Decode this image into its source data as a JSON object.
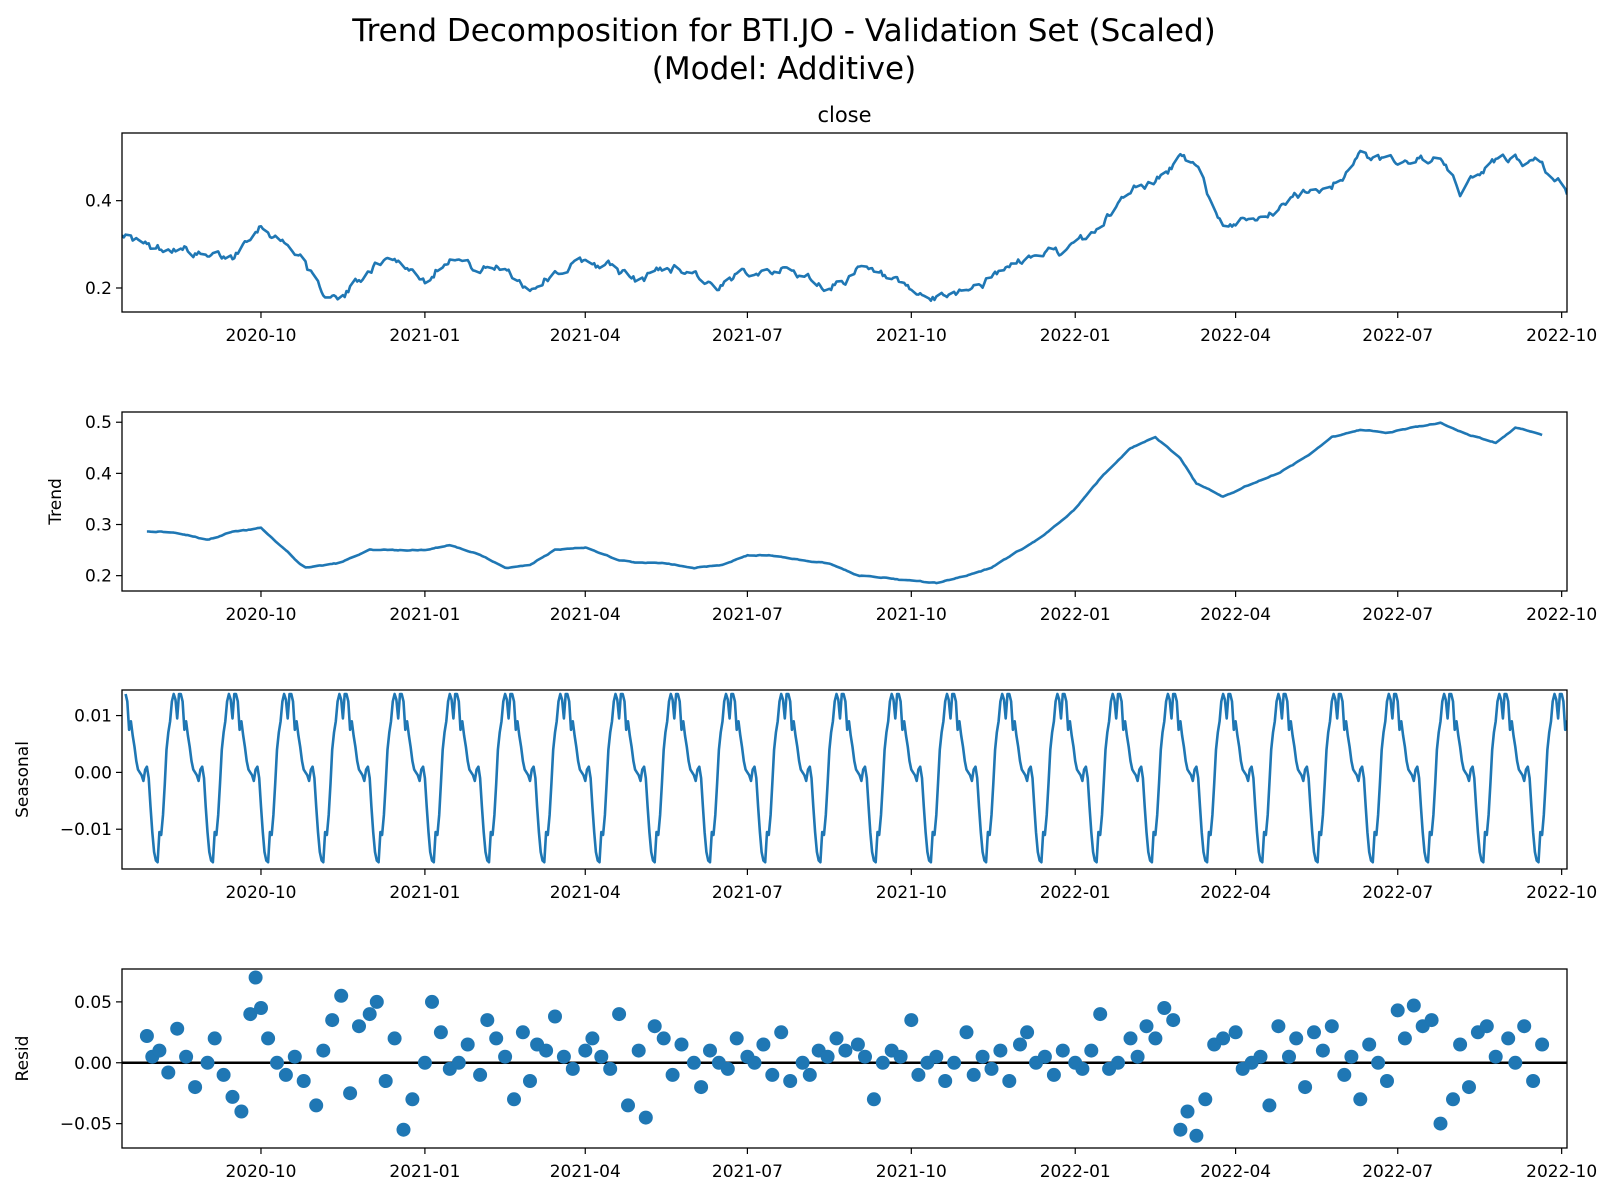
{
  "figure": {
    "title_line1": "Trend Decomposition for BTI.JO - Validation Set (Scaled)",
    "title_line2": "(Model: Additive)"
  },
  "colors": {
    "series": "#1f77b4",
    "zero_line": "#000000",
    "axes": "#000000"
  },
  "chart_data": [
    {
      "type": "line",
      "title": "close",
      "ylabel": "",
      "ylim": [
        0.145,
        0.555
      ],
      "yticks": [
        0.2,
        0.4
      ],
      "ytick_labels": [
        "0.2",
        "0.4"
      ],
      "xlim": [
        "2020-07-15",
        "2022-10-04"
      ],
      "xticks": [
        "2020-10-01",
        "2021-01-01",
        "2021-04-01",
        "2021-07-01",
        "2021-10-01",
        "2022-01-01",
        "2022-04-01",
        "2022-07-01",
        "2022-10-01"
      ],
      "xtick_labels": [
        "2020-10",
        "2021-01",
        "2021-04",
        "2021-07",
        "2021-10",
        "2022-01",
        "2022-04",
        "2022-07",
        "2022-10"
      ],
      "x": [
        "2020-07-15",
        "2020-08-01",
        "2020-08-15",
        "2020-09-01",
        "2020-09-15",
        "2020-09-25",
        "2020-10-01",
        "2020-10-15",
        "2020-10-25",
        "2020-11-01",
        "2020-11-15",
        "2020-12-01",
        "2020-12-15",
        "2021-01-01",
        "2021-01-15",
        "2021-02-01",
        "2021-02-15",
        "2021-03-01",
        "2021-03-15",
        "2021-04-01",
        "2021-04-15",
        "2021-05-01",
        "2021-05-15",
        "2021-06-01",
        "2021-06-15",
        "2021-07-01",
        "2021-07-15",
        "2021-08-01",
        "2021-08-15",
        "2021-09-01",
        "2021-09-15",
        "2021-10-01",
        "2021-10-15",
        "2021-11-01",
        "2021-11-15",
        "2021-12-01",
        "2021-12-15",
        "2022-01-01",
        "2022-01-15",
        "2022-02-01",
        "2022-02-15",
        "2022-03-01",
        "2022-03-10",
        "2022-03-25",
        "2022-04-10",
        "2022-04-25",
        "2022-05-10",
        "2022-05-25",
        "2022-06-10",
        "2022-06-25",
        "2022-07-10",
        "2022-07-25",
        "2022-08-05",
        "2022-08-20",
        "2022-09-05",
        "2022-09-20",
        "2022-10-04"
      ],
      "values": [
        0.33,
        0.285,
        0.3,
        0.265,
        0.27,
        0.33,
        0.35,
        0.3,
        0.27,
        0.2,
        0.17,
        0.25,
        0.27,
        0.22,
        0.28,
        0.24,
        0.25,
        0.2,
        0.24,
        0.26,
        0.25,
        0.21,
        0.25,
        0.24,
        0.19,
        0.24,
        0.25,
        0.23,
        0.2,
        0.24,
        0.22,
        0.18,
        0.17,
        0.2,
        0.22,
        0.26,
        0.28,
        0.29,
        0.34,
        0.43,
        0.44,
        0.5,
        0.47,
        0.34,
        0.37,
        0.38,
        0.42,
        0.44,
        0.5,
        0.49,
        0.5,
        0.49,
        0.42,
        0.48,
        0.5,
        0.48,
        0.42
      ]
    },
    {
      "type": "line",
      "title": "",
      "ylabel": "Trend",
      "ylim": [
        0.17,
        0.52
      ],
      "yticks": [
        0.2,
        0.3,
        0.4,
        0.5
      ],
      "ytick_labels": [
        "0.2",
        "0.3",
        "0.4",
        "0.5"
      ],
      "xlim": [
        "2020-07-15",
        "2022-10-04"
      ],
      "xticks": [
        "2020-10-01",
        "2021-01-01",
        "2021-04-01",
        "2021-07-01",
        "2021-10-01",
        "2022-01-01",
        "2022-04-01",
        "2022-07-01",
        "2022-10-01"
      ],
      "xtick_labels": [
        "2020-10",
        "2021-01",
        "2021-04",
        "2021-07",
        "2021-10",
        "2022-01",
        "2022-04",
        "2022-07",
        "2022-10"
      ],
      "x": [
        "2020-07-29",
        "2020-08-15",
        "2020-09-01",
        "2020-09-15",
        "2020-10-01",
        "2020-10-15",
        "2020-10-25",
        "2020-11-15",
        "2020-12-01",
        "2021-01-01",
        "2021-01-15",
        "2021-02-01",
        "2021-02-15",
        "2021-03-01",
        "2021-03-15",
        "2021-04-01",
        "2021-04-20",
        "2021-05-01",
        "2021-05-15",
        "2021-06-01",
        "2021-06-15",
        "2021-07-01",
        "2021-07-15",
        "2021-08-01",
        "2021-08-15",
        "2021-09-01",
        "2021-09-15",
        "2021-10-01",
        "2021-10-15",
        "2021-11-01",
        "2021-11-15",
        "2021-12-01",
        "2021-12-15",
        "2022-01-01",
        "2022-01-15",
        "2022-02-01",
        "2022-02-15",
        "2022-03-01",
        "2022-03-10",
        "2022-03-25",
        "2022-04-10",
        "2022-04-25",
        "2022-05-10",
        "2022-05-25",
        "2022-06-10",
        "2022-06-25",
        "2022-07-10",
        "2022-07-25",
        "2022-08-10",
        "2022-08-25",
        "2022-09-05",
        "2022-09-20"
      ],
      "values": [
        0.287,
        0.285,
        0.27,
        0.285,
        0.293,
        0.25,
        0.215,
        0.225,
        0.25,
        0.25,
        0.26,
        0.24,
        0.215,
        0.22,
        0.25,
        0.255,
        0.23,
        0.225,
        0.225,
        0.215,
        0.22,
        0.24,
        0.24,
        0.23,
        0.225,
        0.2,
        0.195,
        0.19,
        0.185,
        0.2,
        0.215,
        0.25,
        0.28,
        0.33,
        0.39,
        0.45,
        0.47,
        0.43,
        0.38,
        0.355,
        0.38,
        0.4,
        0.43,
        0.47,
        0.485,
        0.48,
        0.49,
        0.5,
        0.475,
        0.46,
        0.49,
        0.475
      ]
    },
    {
      "type": "line",
      "title": "",
      "ylabel": "Seasonal",
      "ylim": [
        -0.017,
        0.0145
      ],
      "yticks": [
        -0.01,
        0.0,
        0.01
      ],
      "ytick_labels": [
        "−0.01",
        "0.00",
        "0.01"
      ],
      "xlim": [
        "2020-07-15",
        "2022-10-04"
      ],
      "xticks": [
        "2020-10-01",
        "2021-01-01",
        "2021-04-01",
        "2021-07-01",
        "2021-10-01",
        "2022-01-01",
        "2022-04-01",
        "2022-07-01",
        "2022-10-01"
      ],
      "xtick_labels": [
        "2020-10",
        "2021-01",
        "2021-04",
        "2021-07",
        "2021-10",
        "2022-01",
        "2022-04",
        "2022-07",
        "2022-10"
      ],
      "period_days": 31,
      "cycle_start": "2020-07-17",
      "cycle_values": [
        0.0138,
        0.0125,
        0.0075,
        0.009,
        0.0065,
        0.0045,
        0.002,
        0.0005,
        0.0,
        -0.0005,
        -0.0015,
        0.0005,
        0.001,
        -0.001,
        -0.006,
        -0.0105,
        -0.014,
        -0.0155,
        -0.0158,
        -0.0105,
        -0.011,
        -0.0075,
        -0.002,
        0.004,
        0.007,
        0.009,
        0.0125,
        0.0138,
        0.0128,
        0.0095,
        0.0138
      ]
    },
    {
      "type": "scatter",
      "title": "",
      "ylabel": "Resid",
      "ylim": [
        -0.07,
        0.077
      ],
      "yticks": [
        -0.05,
        0.0,
        0.05
      ],
      "ytick_labels": [
        "−0.05",
        "0.00",
        "0.05"
      ],
      "xlim": [
        "2020-07-15",
        "2022-10-04"
      ],
      "xticks": [
        "2020-10-01",
        "2021-01-01",
        "2021-04-01",
        "2021-07-01",
        "2021-10-01",
        "2022-01-01",
        "2022-04-01",
        "2022-07-01",
        "2022-10-01"
      ],
      "xtick_labels": [
        "2020-10",
        "2021-01",
        "2021-04",
        "2021-07",
        "2021-10",
        "2022-01",
        "2022-04",
        "2022-07",
        "2022-10"
      ],
      "x": [
        "2020-07-29",
        "2020-08-01",
        "2020-08-05",
        "2020-08-10",
        "2020-08-15",
        "2020-08-20",
        "2020-08-25",
        "2020-09-01",
        "2020-09-05",
        "2020-09-10",
        "2020-09-15",
        "2020-09-20",
        "2020-09-25",
        "2020-09-28",
        "2020-10-01",
        "2020-10-05",
        "2020-10-10",
        "2020-10-15",
        "2020-10-20",
        "2020-10-25",
        "2020-11-01",
        "2020-11-05",
        "2020-11-10",
        "2020-11-15",
        "2020-11-20",
        "2020-11-25",
        "2020-12-01",
        "2020-12-05",
        "2020-12-10",
        "2020-12-15",
        "2020-12-20",
        "2020-12-25",
        "2021-01-01",
        "2021-01-05",
        "2021-01-10",
        "2021-01-15",
        "2021-01-20",
        "2021-01-25",
        "2021-02-01",
        "2021-02-05",
        "2021-02-10",
        "2021-02-15",
        "2021-02-20",
        "2021-02-25",
        "2021-03-01",
        "2021-03-05",
        "2021-03-10",
        "2021-03-15",
        "2021-03-20",
        "2021-03-25",
        "2021-04-01",
        "2021-04-05",
        "2021-04-10",
        "2021-04-15",
        "2021-04-20",
        "2021-04-25",
        "2021-05-01",
        "2021-05-05",
        "2021-05-10",
        "2021-05-15",
        "2021-05-20",
        "2021-05-25",
        "2021-06-01",
        "2021-06-05",
        "2021-06-10",
        "2021-06-15",
        "2021-06-20",
        "2021-06-25",
        "2021-07-01",
        "2021-07-05",
        "2021-07-10",
        "2021-07-15",
        "2021-07-20",
        "2021-07-25",
        "2021-08-01",
        "2021-08-05",
        "2021-08-10",
        "2021-08-15",
        "2021-08-20",
        "2021-08-25",
        "2021-09-01",
        "2021-09-05",
        "2021-09-10",
        "2021-09-15",
        "2021-09-20",
        "2021-09-25",
        "2021-10-01",
        "2021-10-05",
        "2021-10-10",
        "2021-10-15",
        "2021-10-20",
        "2021-10-25",
        "2021-11-01",
        "2021-11-05",
        "2021-11-10",
        "2021-11-15",
        "2021-11-20",
        "2021-11-25",
        "2021-12-01",
        "2021-12-05",
        "2021-12-10",
        "2021-12-15",
        "2021-12-20",
        "2021-12-25",
        "2022-01-01",
        "2022-01-05",
        "2022-01-10",
        "2022-01-15",
        "2022-01-20",
        "2022-01-25",
        "2022-02-01",
        "2022-02-05",
        "2022-02-10",
        "2022-02-15",
        "2022-02-20",
        "2022-02-25",
        "2022-03-01",
        "2022-03-05",
        "2022-03-10",
        "2022-03-15",
        "2022-03-20",
        "2022-03-25",
        "2022-04-01",
        "2022-04-05",
        "2022-04-10",
        "2022-04-15",
        "2022-04-20",
        "2022-04-25",
        "2022-05-01",
        "2022-05-05",
        "2022-05-10",
        "2022-05-15",
        "2022-05-20",
        "2022-05-25",
        "2022-06-01",
        "2022-06-05",
        "2022-06-10",
        "2022-06-15",
        "2022-06-20",
        "2022-06-25",
        "2022-07-01",
        "2022-07-05",
        "2022-07-10",
        "2022-07-15",
        "2022-07-20",
        "2022-07-25",
        "2022-08-01",
        "2022-08-05",
        "2022-08-10",
        "2022-08-15",
        "2022-08-20",
        "2022-08-25",
        "2022-09-01",
        "2022-09-05",
        "2022-09-10",
        "2022-09-15",
        "2022-09-20"
      ],
      "values": [
        0.022,
        0.005,
        0.01,
        -0.008,
        0.028,
        0.005,
        -0.02,
        0.0,
        0.02,
        -0.01,
        -0.028,
        -0.04,
        0.04,
        0.07,
        0.045,
        0.02,
        0.0,
        -0.01,
        0.005,
        -0.015,
        -0.035,
        0.01,
        0.035,
        0.055,
        -0.025,
        0.03,
        0.04,
        0.05,
        -0.015,
        0.02,
        -0.055,
        -0.03,
        0.0,
        0.05,
        0.025,
        -0.005,
        0.0,
        0.015,
        -0.01,
        0.035,
        0.02,
        0.005,
        -0.03,
        0.025,
        -0.015,
        0.015,
        0.01,
        0.038,
        0.005,
        -0.005,
        0.01,
        0.02,
        0.005,
        -0.005,
        0.04,
        -0.035,
        0.01,
        -0.045,
        0.03,
        0.02,
        -0.01,
        0.015,
        0.0,
        -0.02,
        0.01,
        0.0,
        -0.005,
        0.02,
        0.005,
        0.0,
        0.015,
        -0.01,
        0.025,
        -0.015,
        0.0,
        -0.01,
        0.01,
        0.005,
        0.02,
        0.01,
        0.015,
        0.005,
        -0.03,
        0.0,
        0.01,
        0.005,
        0.035,
        -0.01,
        0.0,
        0.005,
        -0.015,
        0.0,
        0.025,
        -0.01,
        0.005,
        -0.005,
        0.01,
        -0.015,
        0.015,
        0.025,
        0.0,
        0.005,
        -0.01,
        0.01,
        0.0,
        -0.005,
        0.01,
        0.04,
        -0.005,
        0.0,
        0.02,
        0.005,
        0.03,
        0.02,
        0.045,
        0.035,
        -0.055,
        -0.04,
        -0.06,
        -0.03,
        0.015,
        0.02,
        0.025,
        -0.005,
        0.0,
        0.005,
        -0.035,
        0.03,
        0.005,
        0.02,
        -0.02,
        0.025,
        0.01,
        0.03,
        -0.01,
        0.005,
        -0.03,
        0.015,
        0.0,
        -0.015,
        0.043,
        0.02,
        0.047,
        0.03,
        0.035,
        -0.05,
        -0.03,
        0.015,
        -0.02,
        0.025,
        0.03,
        0.005,
        0.02,
        0.0,
        0.03,
        -0.015,
        0.015
      ]
    }
  ]
}
